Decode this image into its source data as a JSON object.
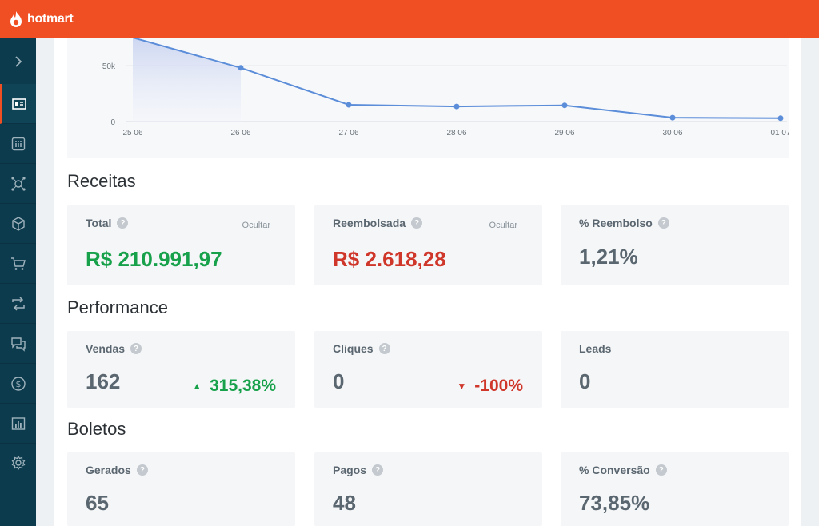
{
  "header": {
    "brand": "hotmart",
    "bar_color": "#f04e23"
  },
  "sidebar": {
    "items": [
      {
        "icon": "chevron-right-icon"
      },
      {
        "icon": "dashboard-icon",
        "active": true
      },
      {
        "icon": "grid-icon"
      },
      {
        "icon": "affiliate-network-icon"
      },
      {
        "icon": "box-icon"
      },
      {
        "icon": "cart-icon"
      },
      {
        "icon": "refresh-icon"
      },
      {
        "icon": "chat-icon"
      },
      {
        "icon": "dollar-icon"
      },
      {
        "icon": "bar-chart-icon"
      },
      {
        "icon": "gear-icon"
      }
    ]
  },
  "chart_data": {
    "type": "area",
    "categories": [
      "25 06",
      "26 06",
      "27 06",
      "28 06",
      "29 06",
      "30 06",
      "01 07"
    ],
    "values": [
      75000,
      48000,
      15000,
      13500,
      14500,
      3500,
      3000
    ],
    "ytick_labels": [
      "0",
      "50k"
    ],
    "ylim": [
      0,
      100000
    ],
    "line_color": "#5b8dd9",
    "grid": true
  },
  "receitas": {
    "title": "Receitas",
    "total": {
      "label": "Total",
      "hide": "Ocultar",
      "value": "R$ 210.991,97"
    },
    "reembolsada": {
      "label": "Reembolsada",
      "hide": "Ocultar",
      "value": "R$ 2.618,28"
    },
    "pct_reembolso": {
      "label": "% Reembolso",
      "value": "1,21%"
    }
  },
  "performance": {
    "title": "Performance",
    "vendas": {
      "label": "Vendas",
      "value": "162",
      "delta": "315,38%"
    },
    "cliques": {
      "label": "Cliques",
      "value": "0",
      "delta": "-100%"
    },
    "leads": {
      "label": "Leads",
      "value": "0"
    }
  },
  "boletos": {
    "title": "Boletos",
    "gerados": {
      "label": "Gerados",
      "value": "65"
    },
    "pagos": {
      "label": "Pagos",
      "value": "48"
    },
    "conversao": {
      "label": "% Conversão",
      "value": "73,85%"
    }
  },
  "help_glyph": "?",
  "up_glyph": "▲",
  "down_glyph": "▼"
}
